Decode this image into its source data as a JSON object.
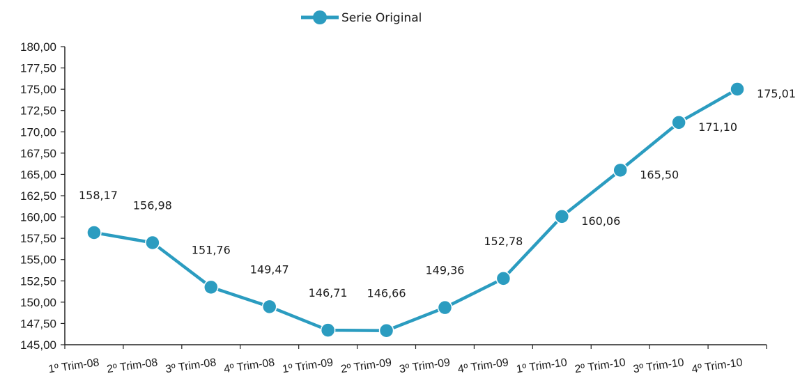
{
  "chart_data": {
    "type": "line",
    "title": "",
    "xlabel": "",
    "ylabel": "",
    "legend_position": "top-center",
    "grid": false,
    "ylim": [
      145,
      180
    ],
    "y_ticks": [
      "145,00",
      "147,50",
      "150,00",
      "152,50",
      "155,00",
      "157,50",
      "160,00",
      "162,50",
      "165,00",
      "167,50",
      "170,00",
      "172,50",
      "175,00",
      "177,50",
      "180,00"
    ],
    "y_tick_values": [
      145,
      147.5,
      150,
      152.5,
      155,
      157.5,
      160,
      162.5,
      165,
      167.5,
      170,
      172.5,
      175,
      177.5,
      180
    ],
    "categories": [
      "1º Trim-08",
      "2º Trim-08",
      "3º Trim-08",
      "4º Trim-08",
      "1º Trim-09",
      "2º Trim-09",
      "3º Trim-09",
      "4º Trim-09",
      "1º Trim-10",
      "2º Trim-10",
      "3º Trim-10",
      "4º Trim-10"
    ],
    "series": [
      {
        "name": "Serie Original",
        "color": "#2b9cc0",
        "values": [
          158.17,
          156.98,
          151.76,
          149.47,
          146.71,
          146.66,
          149.36,
          152.78,
          160.06,
          165.5,
          171.1,
          175.01
        ],
        "data_labels": [
          "158,17",
          "156,98",
          "151,76",
          "149,47",
          "146,71",
          "146,66",
          "149,36",
          "152,78",
          "160,06",
          "165,50",
          "171,10",
          "175,01"
        ]
      }
    ]
  }
}
